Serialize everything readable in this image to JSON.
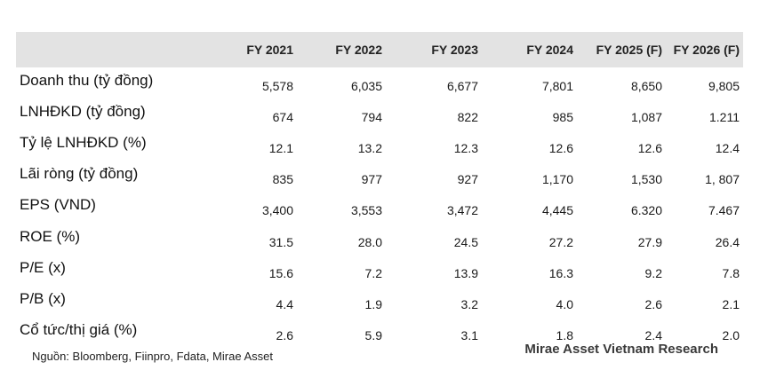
{
  "table": {
    "columns": [
      "",
      "FY 2021",
      "FY 2022",
      "FY 2023",
      "FY 2024",
      "FY 2025 (F)",
      "FY 2026 (F)"
    ],
    "rows": [
      {
        "label": "Doanh thu (tỷ đồng)",
        "values": [
          "5,578",
          "6,035",
          "6,677",
          "7,801",
          "8,650",
          "9,805"
        ]
      },
      {
        "label": "LNHĐKD (tỷ đồng)",
        "values": [
          "674",
          "794",
          "822",
          "985",
          "1,087",
          "1.211"
        ]
      },
      {
        "label": "Tỷ lệ LNHĐKD (%)",
        "values": [
          "12.1",
          "13.2",
          "12.3",
          "12.6",
          "12.6",
          "12.4"
        ]
      },
      {
        "label": "Lãi ròng (tỷ đồng)",
        "values": [
          "835",
          "977",
          "927",
          "1,170",
          "1,530",
          "1, 807"
        ]
      },
      {
        "label": "EPS (VND)",
        "values": [
          "3,400",
          "3,553",
          "3,472",
          "4,445",
          "6.320",
          "7.467"
        ]
      },
      {
        "label": "ROE (%)",
        "values": [
          "31.5",
          "28.0",
          "24.5",
          "27.2",
          "27.9",
          "26.4"
        ]
      },
      {
        "label": "P/E (x)",
        "values": [
          "15.6",
          "7.2",
          "13.9",
          "16.3",
          "9.2",
          "7.8"
        ]
      },
      {
        "label": "P/B (x)",
        "values": [
          "4.4",
          "1.9",
          "3.2",
          "4.0",
          "2.6",
          "2.1"
        ]
      },
      {
        "label": "Cổ tức/thị giá (%)",
        "values": [
          "2.6",
          "5.9",
          "3.1",
          "1.8",
          "2.4",
          "2.0"
        ]
      }
    ]
  },
  "footer": {
    "source": "Nguồn: Bloomberg, Fiinpro, Fdata, Mirae Asset",
    "brand": "Mirae Asset Vietnam Research"
  },
  "colors": {
    "header_background": "#e3e3e3",
    "text": "#1a1a1a"
  }
}
